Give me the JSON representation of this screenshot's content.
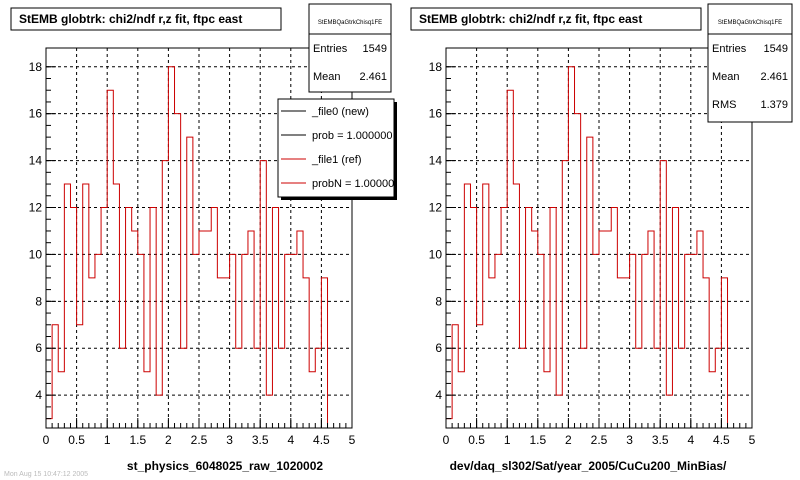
{
  "colors": {
    "histogram": "#cc0000",
    "new_line": "#000000",
    "frame": "#000000",
    "grid": "#000000",
    "background": "#ffffff"
  },
  "footer_text": "Mon Aug 15 10:47:12 2005",
  "panels": [
    {
      "title": "StEMB globtrk: chi2/ndf r,z fit, ftpc east",
      "xlabel": "st_physics_6048025_raw_1020002",
      "stats": {
        "name": "StEMBQaGtrkChisq1FE",
        "rows": [
          {
            "label": "Entries",
            "value": "1549"
          },
          {
            "label": "Mean",
            "value": "2.461"
          }
        ]
      },
      "legend": [
        {
          "label": "_file0 (new)",
          "color": "#000000"
        },
        {
          "label": "prob = 1.000000",
          "color": "#000000"
        },
        {
          "label": "_file1 (ref)",
          "color": "#cc0000"
        },
        {
          "label": "probN = 1.000000",
          "color": "#cc0000"
        }
      ]
    },
    {
      "title": "StEMB globtrk: chi2/ndf r,z fit, ftpc east",
      "xlabel": "dev/daq_sl302/Sat/year_2005/CuCu200_MinBias/",
      "stats": {
        "name": "StEMBQaGtrkChisq1FE",
        "rows": [
          {
            "label": "Entries",
            "value": "1549"
          },
          {
            "label": "Mean",
            "value": "2.461"
          },
          {
            "label": "RMS",
            "value": "1.379"
          }
        ]
      },
      "legend": []
    }
  ],
  "chart_data": [
    {
      "type": "bar",
      "style": "step-histogram",
      "title": "StEMB globtrk: chi2/ndf r,z fit, ftpc east",
      "xlabel": "st_physics_6048025_raw_1020002",
      "ylabel": "",
      "bin_width": 0.1,
      "xlim": [
        0,
        5
      ],
      "ylim": [
        2.6,
        18.8
      ],
      "xticks": [
        "0",
        "0.5",
        "1",
        "1.5",
        "2",
        "2.5",
        "3",
        "3.5",
        "4",
        "4.5",
        "5"
      ],
      "yticks": [
        "4",
        "6",
        "8",
        "10",
        "12",
        "14",
        "16",
        "18"
      ],
      "grid": true,
      "series": [
        {
          "name": "_file1 (ref)",
          "values": [
            3,
            7,
            5,
            13,
            12,
            7,
            13,
            9,
            10,
            12,
            17,
            13,
            6,
            12,
            11,
            10,
            5,
            12,
            4,
            14,
            18,
            16,
            6,
            15,
            10,
            11,
            11,
            12,
            9,
            9,
            10,
            6,
            10,
            11,
            6,
            14,
            4,
            12,
            6,
            10,
            10,
            11,
            9,
            5,
            6,
            9
          ]
        }
      ]
    },
    {
      "type": "bar",
      "style": "step-histogram",
      "title": "StEMB globtrk: chi2/ndf r,z fit, ftpc east",
      "xlabel": "dev/daq_sl302/Sat/year_2005/CuCu200_MinBias/",
      "ylabel": "",
      "bin_width": 0.1,
      "xlim": [
        0,
        5
      ],
      "ylim": [
        2.6,
        18.8
      ],
      "xticks": [
        "0",
        "0.5",
        "1",
        "1.5",
        "2",
        "2.5",
        "3",
        "3.5",
        "4",
        "4.5",
        "5"
      ],
      "yticks": [
        "4",
        "6",
        "8",
        "10",
        "12",
        "14",
        "16",
        "18"
      ],
      "grid": true,
      "series": [
        {
          "name": "",
          "values": [
            3,
            7,
            5,
            13,
            12,
            7,
            13,
            9,
            10,
            12,
            17,
            13,
            6,
            12,
            11,
            10,
            5,
            12,
            4,
            14,
            18,
            16,
            6,
            15,
            10,
            11,
            11,
            12,
            9,
            9,
            10,
            6,
            10,
            11,
            6,
            14,
            4,
            12,
            6,
            10,
            10,
            11,
            9,
            5,
            6,
            9
          ]
        }
      ]
    }
  ]
}
